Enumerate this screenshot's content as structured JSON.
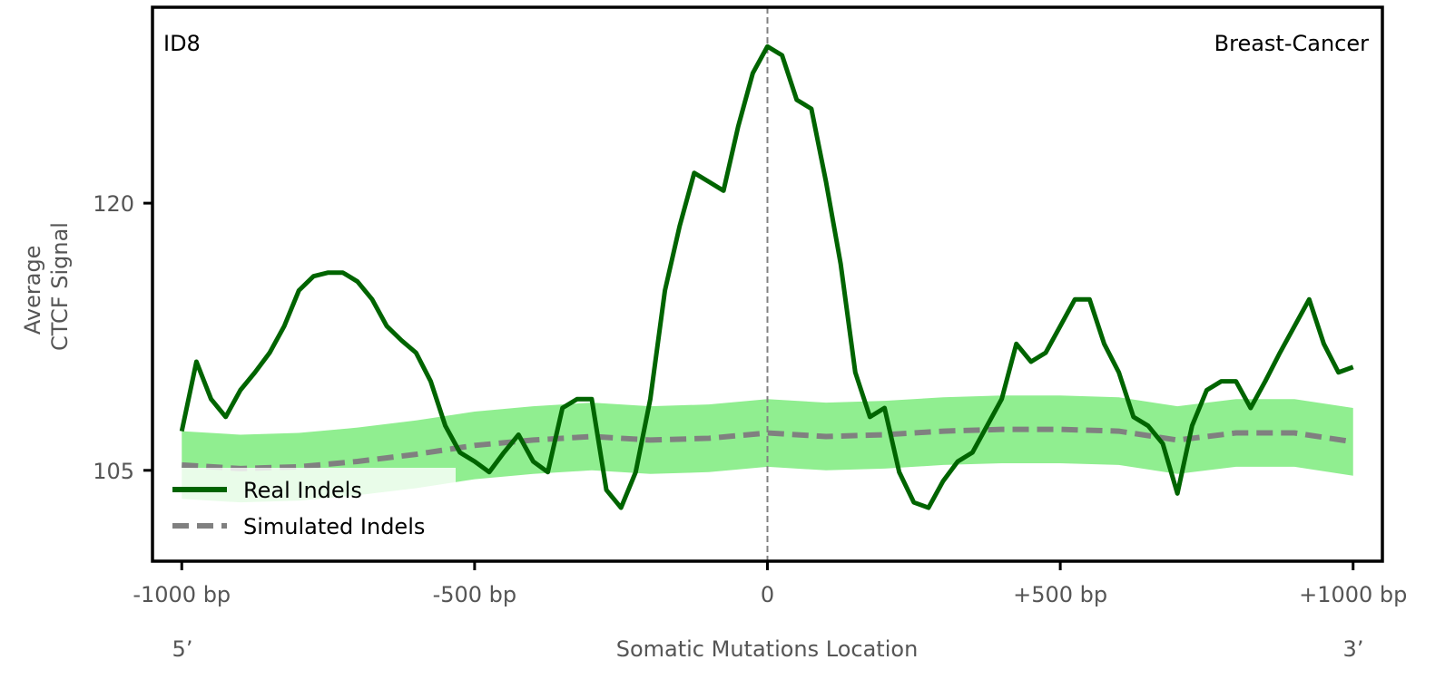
{
  "chart_data": {
    "type": "line",
    "panel_label": "ID8",
    "cancer_type": "Breast-Cancer",
    "xlabel": "Somatic Mutations Location",
    "ylabel": [
      "Average",
      "CTCF Signal"
    ],
    "end_labels": {
      "left": "5’",
      "right": "3’"
    },
    "xlim": [
      -1050,
      1050
    ],
    "ylim": [
      99.9,
      131
    ],
    "x_ticks": [
      {
        "value": -1000,
        "label": "-1000 bp"
      },
      {
        "value": -500,
        "label": "-500 bp"
      },
      {
        "value": 0,
        "label": "0"
      },
      {
        "value": 500,
        "label": "+500 bp"
      },
      {
        "value": 1000,
        "label": "+1000 bp"
      }
    ],
    "y_ticks": [
      {
        "value": 105,
        "label": "105"
      },
      {
        "value": 120,
        "label": "120"
      }
    ],
    "grid": false,
    "center_line": {
      "x": 0,
      "style": "dashed",
      "color": "#808080"
    },
    "legend": {
      "placement": "lower-left",
      "entries": [
        "Real Indels",
        "Simulated Indels"
      ]
    },
    "series": [
      {
        "name": "Real Indels",
        "color": "#006400",
        "style": "solid",
        "x_step": 25,
        "x_start": -1000,
        "values": [
          107.2,
          111.1,
          109.0,
          108.0,
          109.5,
          110.5,
          111.6,
          113.1,
          115.1,
          115.9,
          116.1,
          116.1,
          115.6,
          114.6,
          113.1,
          112.3,
          111.6,
          110.0,
          107.5,
          106.0,
          105.5,
          104.9,
          106.0,
          107.0,
          105.5,
          104.9,
          108.5,
          109.0,
          109.0,
          103.9,
          102.9,
          104.9,
          109.0,
          115.1,
          118.7,
          121.7,
          121.2,
          120.7,
          124.3,
          127.3,
          128.8,
          128.3,
          125.8,
          125.3,
          121.2,
          116.6,
          110.5,
          108.0,
          108.5,
          104.9,
          103.2,
          102.9,
          104.4,
          105.5,
          106.0,
          107.5,
          109.0,
          112.1,
          111.1,
          111.6,
          113.1,
          114.6,
          114.6,
          112.1,
          110.5,
          108.0,
          107.5,
          106.5,
          103.7,
          107.5,
          109.5,
          110.0,
          110.0,
          108.5,
          110.0,
          111.6,
          113.1,
          114.6,
          112.1,
          110.5,
          110.8
        ]
      },
      {
        "name": "Simulated Indels",
        "color": "#808080",
        "style": "dashed",
        "band_color": "#90ee90",
        "x_step": 100,
        "x_start": -1000,
        "values": [
          105.3,
          105.1,
          105.2,
          105.5,
          105.9,
          106.4,
          106.7,
          106.9,
          106.7,
          106.8,
          107.1,
          106.9,
          107.0,
          107.2,
          107.3,
          107.3,
          107.2,
          106.7,
          107.1,
          107.1,
          106.6
        ],
        "band_lower": [
          103.4,
          103.2,
          103.3,
          103.6,
          104.0,
          104.5,
          104.8,
          105.0,
          104.8,
          104.9,
          105.2,
          105.0,
          105.1,
          105.3,
          105.4,
          105.4,
          105.3,
          104.8,
          105.2,
          105.2,
          104.7
        ],
        "band_upper": [
          107.2,
          107.0,
          107.1,
          107.4,
          107.8,
          108.3,
          108.6,
          108.8,
          108.6,
          108.7,
          109.0,
          108.8,
          108.9,
          109.1,
          109.2,
          109.2,
          109.1,
          108.6,
          109.0,
          109.0,
          108.5
        ]
      }
    ]
  }
}
